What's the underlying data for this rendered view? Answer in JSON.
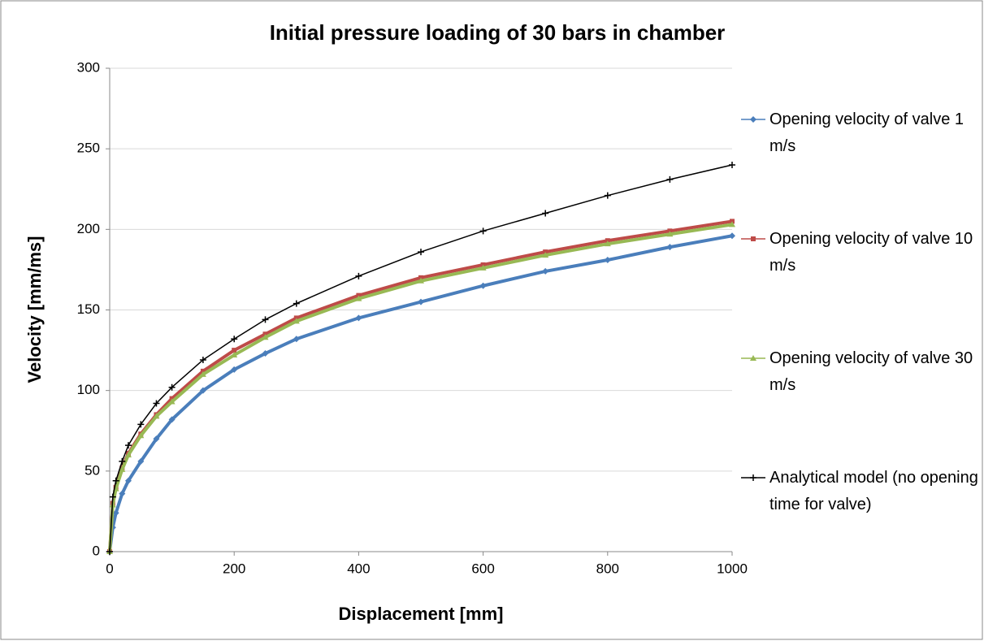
{
  "chart_data": {
    "type": "line",
    "title": "Initial pressure loading of 30 bars in chamber",
    "x_label": "Displacement  [mm]",
    "y_label": "Velocity  [mm/ms]",
    "x": [
      0,
      5,
      10,
      20,
      30,
      50,
      75,
      100,
      150,
      200,
      250,
      300,
      400,
      500,
      600,
      700,
      800,
      900,
      1000
    ],
    "series": [
      {
        "name": "Opening velocity of valve 1 m/s",
        "color": "#4a7ebb",
        "marker": "diamond",
        "values": [
          0,
          15,
          24,
          36,
          44,
          56,
          70,
          82,
          100,
          113,
          123,
          132,
          145,
          155,
          165,
          174,
          181,
          189,
          196
        ]
      },
      {
        "name": "Opening velocity of valve 10 m/s",
        "color": "#be4b48",
        "marker": "square",
        "values": [
          0,
          30,
          40,
          52,
          61,
          73,
          85,
          95,
          112,
          125,
          135,
          145,
          159,
          170,
          178,
          186,
          193,
          199,
          205
        ]
      },
      {
        "name": "Opening velocity of valve 30 m/s",
        "color": "#98b954",
        "marker": "triangle",
        "values": [
          0,
          29,
          39,
          51,
          60,
          72,
          84,
          93,
          110,
          122,
          133,
          143,
          157,
          168,
          176,
          184,
          191,
          197,
          203
        ]
      },
      {
        "name": "Analytical model (no opening time for valve)",
        "color": "#000000",
        "marker": "plus",
        "values": [
          0,
          34,
          44,
          56,
          66,
          79,
          92,
          102,
          119,
          132,
          144,
          154,
          171,
          186,
          199,
          210,
          221,
          231,
          240
        ]
      }
    ],
    "xlim": [
      0,
      1000
    ],
    "xticks": [
      0,
      200,
      400,
      600,
      800,
      1000
    ],
    "ylim": [
      0,
      300
    ],
    "yticks": [
      0,
      50,
      100,
      150,
      200,
      250,
      300
    ],
    "grid": true,
    "legend": "right"
  }
}
